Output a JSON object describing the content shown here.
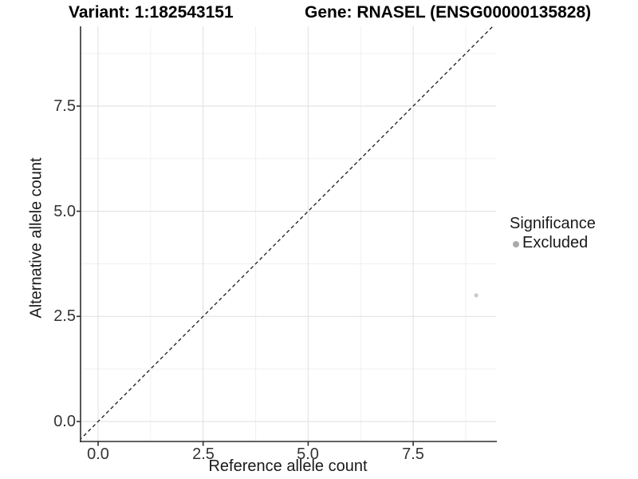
{
  "header": {
    "variant_title": "Variant: 1:182543151",
    "gene_title": "Gene: RNASEL (ENSG00000135828)"
  },
  "axes": {
    "x": {
      "label": "Reference allele count",
      "tick_labels": [
        "0.0",
        "2.5",
        "5.0",
        "7.5"
      ]
    },
    "y": {
      "label": "Alternative allele count",
      "tick_labels": [
        "7.5",
        "5.0",
        "2.5",
        "0.0"
      ]
    }
  },
  "legend": {
    "title": "Significance",
    "items": [
      {
        "label": "Excluded",
        "color": "#a9a9a9"
      }
    ]
  },
  "colors": {
    "point": "#c9c9c9",
    "legend_dot": "#a9a9a9",
    "grid_major": "#e4e4e4",
    "grid_minor": "#f0f0f0",
    "axis_line": "#2e2e2e",
    "dashed_line": "#1a1a1a"
  },
  "chart_data": {
    "type": "scatter",
    "title": "Variant: 1:182543151    Gene: RNASEL (ENSG00000135828)",
    "xlabel": "Reference allele count",
    "ylabel": "Alternative allele count",
    "xlim": [
      -0.45,
      9.45
    ],
    "ylim": [
      -0.45,
      9.45
    ],
    "x_ticks": [
      0.0,
      2.5,
      5.0,
      7.5
    ],
    "y_ticks": [
      0.0,
      2.5,
      5.0,
      7.5
    ],
    "minor_ticks": [
      1.25,
      3.75,
      6.25,
      8.75
    ],
    "grid": "major+minor",
    "aspect": "equal",
    "legend_position": "right",
    "series": [
      {
        "name": "Excluded",
        "color": "#c9c9c9",
        "point_size": 2.6,
        "points": [
          [
            9,
            3
          ]
        ]
      }
    ],
    "reference_line": {
      "type": "identity y=x",
      "style": "dashed",
      "from": [
        -0.45,
        -0.45
      ],
      "to": [
        9.45,
        9.45
      ]
    }
  }
}
